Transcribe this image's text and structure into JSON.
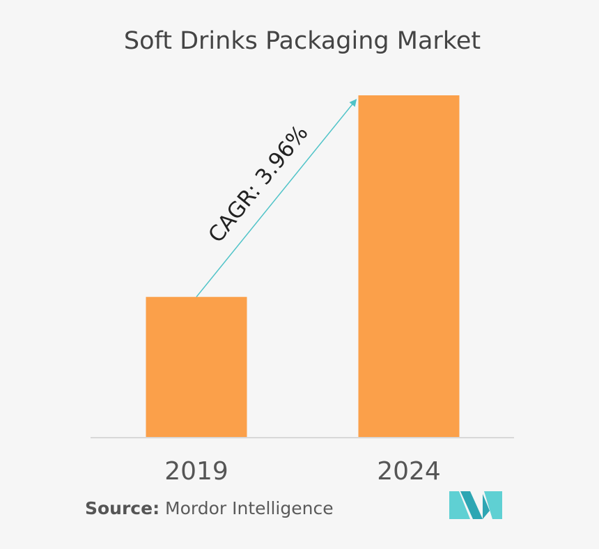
{
  "chart_data": {
    "type": "bar",
    "title": "Soft Drinks Packaging Market",
    "categories": [
      "2019",
      "2024"
    ],
    "values": [
      41,
      100
    ],
    "ylim": [
      0,
      100
    ],
    "xlabel": "",
    "ylabel": "",
    "annotation": "CAGR: 3.96%",
    "grid": false,
    "bar_color": "#fba04a",
    "arrow_color": "#4fc3c8"
  },
  "footer": {
    "source_label": "Source:",
    "source_value": "Mordor Intelligence"
  },
  "logo": {
    "icon": "mordor-intelligence-logo-icon",
    "colors": [
      "#2ea6b3",
      "#5fd0d3"
    ]
  }
}
